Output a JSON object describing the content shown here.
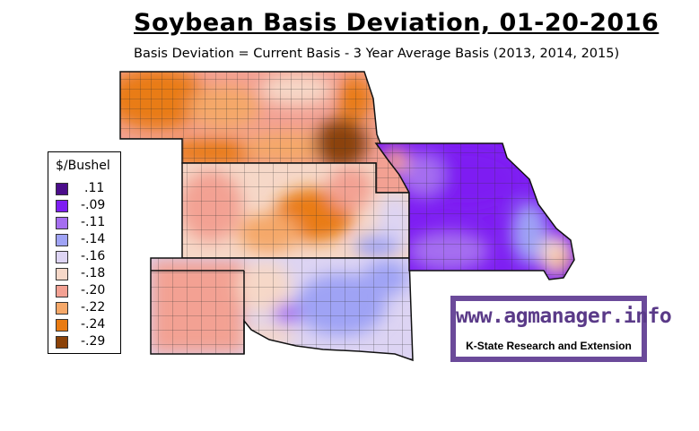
{
  "title": "Soybean Basis Deviation, 01-20-2016",
  "subtitle": "Basis Deviation = Current Basis - 3 Year Average Basis (2013, 2014, 2015)",
  "legend": {
    "title": "$/Bushel",
    "items": [
      {
        "label": ".11",
        "color": "#4b0d8a"
      },
      {
        "label": "-.09",
        "color": "#7e1ef2"
      },
      {
        "label": "-.11",
        "color": "#a56ef0"
      },
      {
        "label": "-.14",
        "color": "#9fa3f5"
      },
      {
        "label": "-.16",
        "color": "#ddd4f3"
      },
      {
        "label": "-.18",
        "color": "#f6d8c8"
      },
      {
        "label": "-.20",
        "color": "#f3a193"
      },
      {
        "label": "-.22",
        "color": "#f5a869"
      },
      {
        "label": "-.24",
        "color": "#e97b12"
      },
      {
        "label": "-.29",
        "color": "#8b4208"
      }
    ]
  },
  "logo": {
    "url_text": "www.agmanager.info",
    "tagline": "K-State Research and Extension"
  }
}
